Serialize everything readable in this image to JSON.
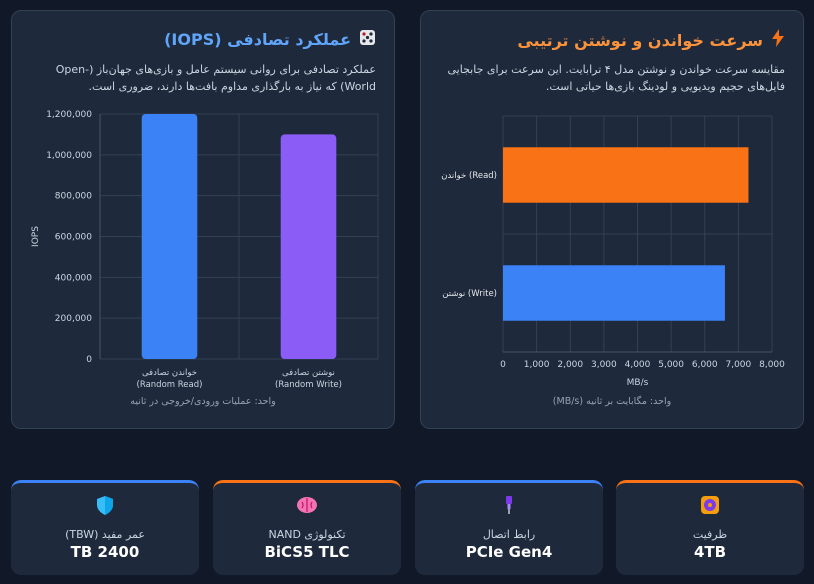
{
  "colors": {
    "orange": "#f97316",
    "blue": "#3b82f6",
    "purple": "#8b5cf6",
    "title_orange": "#fb923c",
    "title_blue": "#60a5fa"
  },
  "seq_card": {
    "icon": "lightning-icon",
    "title": "سرعت خواندن و نوشتن ترتیبی",
    "desc": "مقایسه سرعت خواندن و نوشتن مدل ۴ ترابایت. این سرعت برای جابجایی فایل‌های حجیم ویدیویی و لودینگ بازی‌ها حیاتی است.",
    "unit_note": "واحد: مگابایت بر ثانیه (MB/s)"
  },
  "iops_card": {
    "icon": "dice-icon",
    "title": "عملکرد تصادفی (IOPS)",
    "desc": "عملکرد تصادفی برای روانی سیستم عامل و بازی‌های جهان‌باز (Open-World) که نیاز به بارگذاری مداوم بافت‌ها دارند، ضروری است.",
    "unit_note": "واحد: عملیات ورودی/خروجی در ثانیه"
  },
  "chart_data": [
    {
      "type": "bar",
      "orientation": "horizontal",
      "categories": [
        "خواندن (Read)",
        "نوشتن (Write)"
      ],
      "values": [
        7300,
        6600
      ],
      "colors": [
        "#f97316",
        "#3b82f6"
      ],
      "xlabel": "MB/s",
      "ylabel": "",
      "xlim": [
        0,
        8000
      ],
      "ticks": [
        "0",
        "1,000",
        "2,000",
        "3,000",
        "4,000",
        "5,000",
        "6,000",
        "7,000",
        "8,000"
      ],
      "grid": true
    },
    {
      "type": "bar",
      "orientation": "vertical",
      "categories": [
        [
          "خواندن تصادفی",
          "(Random Read)"
        ],
        [
          "نوشتن تصادفی",
          "(Random Write)"
        ]
      ],
      "values": [
        1200000,
        1100000
      ],
      "colors": [
        "#3b82f6",
        "#8b5cf6"
      ],
      "ylabel": "IOPS",
      "xlabel": "",
      "ylim": [
        0,
        1200000
      ],
      "ticks": [
        "0",
        "200,000",
        "400,000",
        "600,000",
        "800,000",
        "1,000,000",
        "1,200,000"
      ],
      "grid": true
    }
  ],
  "stats": [
    {
      "icon": "disk-icon",
      "label": "ظرفیت",
      "value": "4TB",
      "accent": "#f97316"
    },
    {
      "icon": "connector-icon",
      "label": "رابط اتصال",
      "value": "PCIe Gen4",
      "accent": "#3b82f6"
    },
    {
      "icon": "brain-icon",
      "label": "تکنولوژی NAND",
      "value": "BiCS5 TLC",
      "accent": "#f97316"
    },
    {
      "icon": "shield-icon",
      "label": "عمر مفید (TBW)",
      "value": "TB 2400",
      "accent": "#3b82f6"
    }
  ]
}
